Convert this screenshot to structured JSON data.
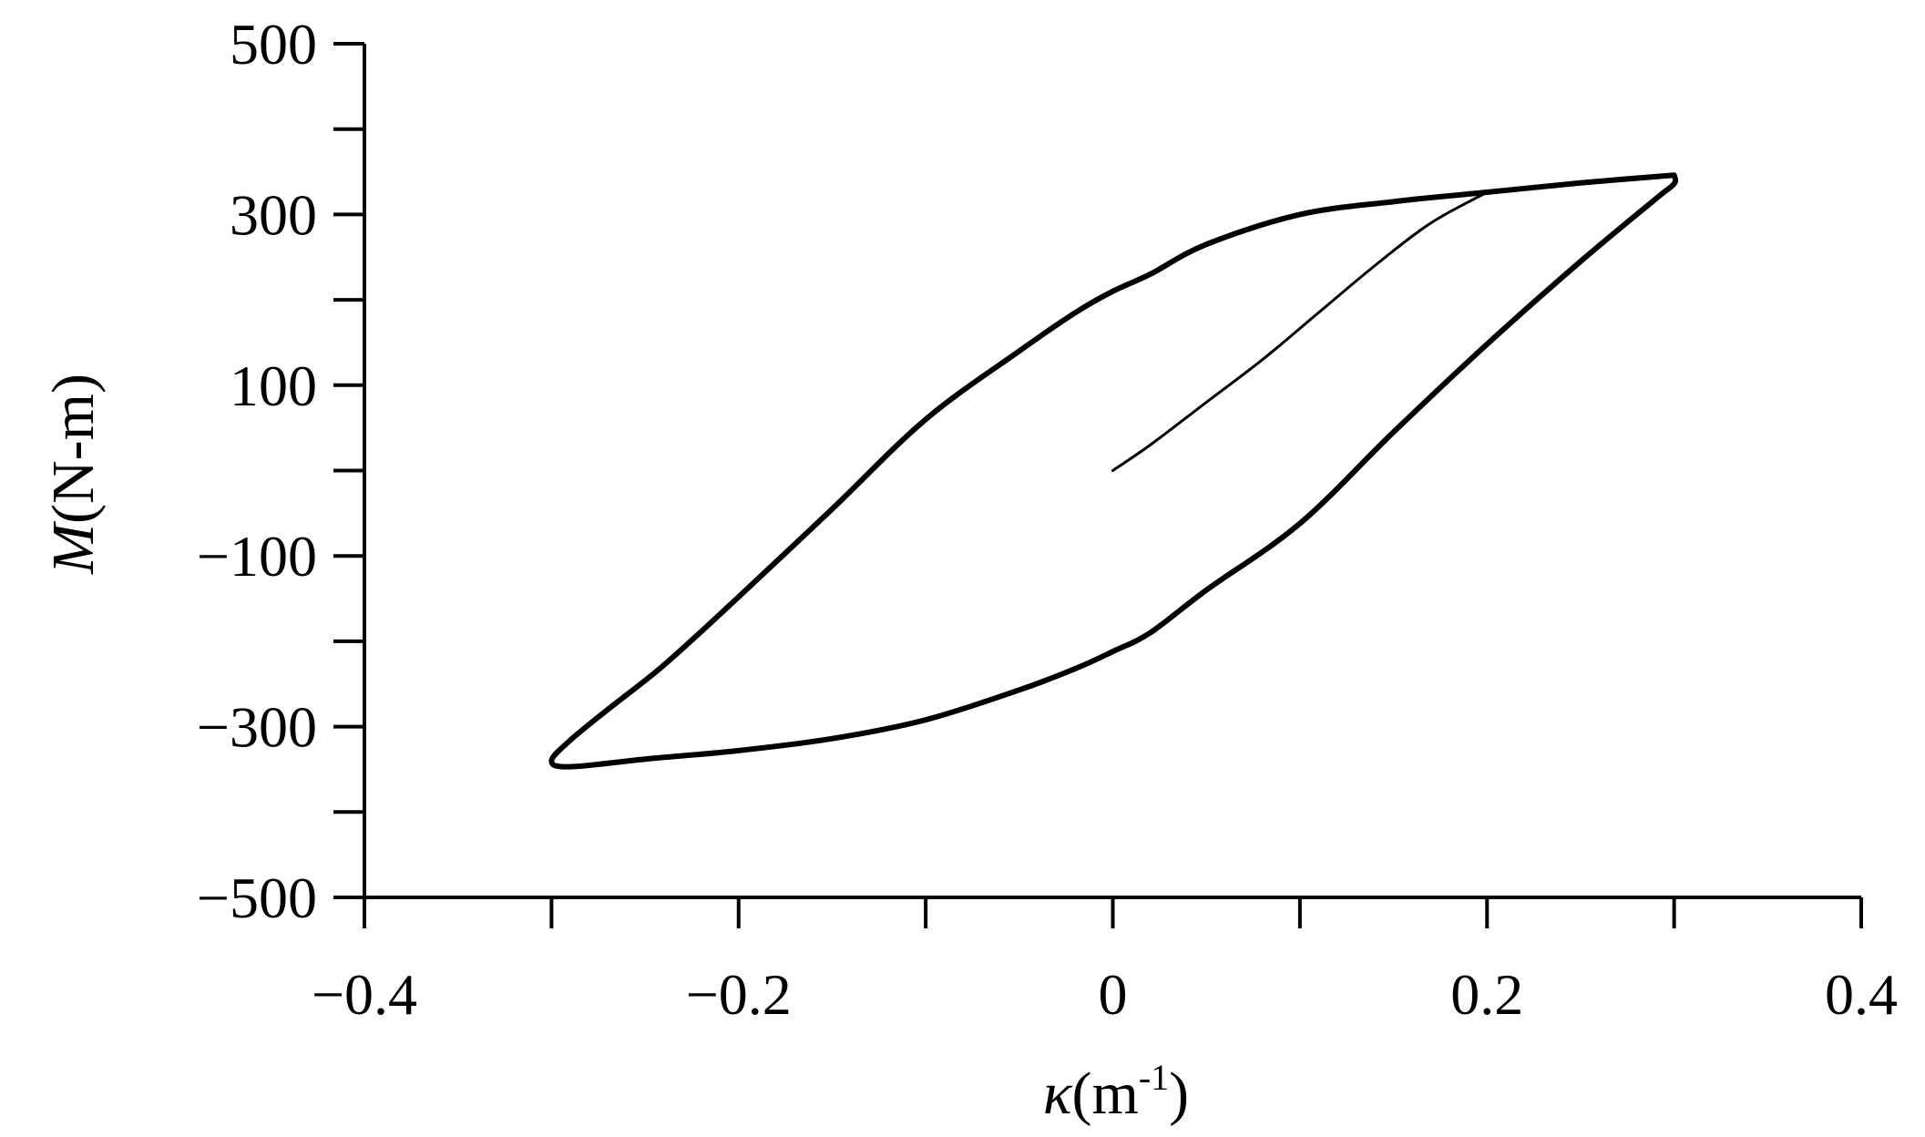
{
  "chart_data": {
    "type": "line",
    "title": "",
    "xlabel_symbol": "κ",
    "xlabel_unit": "(m",
    "xlabel_sup": "-1",
    "xlabel_close": ")",
    "ylabel_symbol": "M",
    "ylabel_unit": "(N-m)",
    "xlim": [
      -0.4,
      0.4
    ],
    "ylim": [
      -500,
      500
    ],
    "x_ticks": [
      -0.4,
      -0.3,
      -0.2,
      -0.1,
      0,
      0.1,
      0.2,
      0.3,
      0.4
    ],
    "x_tick_labels": [
      "−0.4",
      "−0.2",
      "0",
      "0.2",
      "0.4"
    ],
    "x_tick_label_values": [
      -0.4,
      -0.2,
      0,
      0.2,
      0.4
    ],
    "y_ticks": [
      -500,
      -400,
      -300,
      -200,
      -100,
      0,
      100,
      200,
      300,
      400,
      500
    ],
    "y_tick_labels": [
      "500",
      "300",
      "100",
      "−100",
      "−300",
      "−500"
    ],
    "y_tick_label_values": [
      500,
      300,
      100,
      -100,
      -300,
      -500
    ],
    "grid": false,
    "series": [
      {
        "role": "initial-loading",
        "color": "#000000",
        "x": [
          0,
          0.02,
          0.05,
          0.08,
          0.11,
          0.14,
          0.17,
          0.2
        ],
        "y": [
          0,
          30,
          80,
          130,
          185,
          240,
          290,
          326
        ]
      },
      {
        "role": "hysteresis-loop",
        "color": "#000000",
        "x": [
          0.3,
          0.25,
          0.2,
          0.15,
          0.1,
          0.05,
          0.02,
          0,
          -0.02,
          -0.05,
          -0.1,
          -0.15,
          -0.2,
          -0.24,
          -0.27,
          -0.29,
          -0.3,
          -0.29,
          -0.25,
          -0.2,
          -0.15,
          -0.1,
          -0.05,
          -0.02,
          0,
          0.02,
          0.05,
          0.1,
          0.15,
          0.2,
          0.25,
          0.29,
          0.3,
          0.3
        ],
        "y": [
          346,
          337,
          326,
          315,
          300,
          265,
          230,
          210,
          185,
          140,
          60,
          -45,
          -148,
          -228,
          -280,
          -316,
          -340,
          -347,
          -338,
          -328,
          -314,
          -292,
          -257,
          -232,
          -212,
          -190,
          -140,
          -62,
          45,
          148,
          245,
          318,
          336,
          346
        ]
      }
    ]
  }
}
